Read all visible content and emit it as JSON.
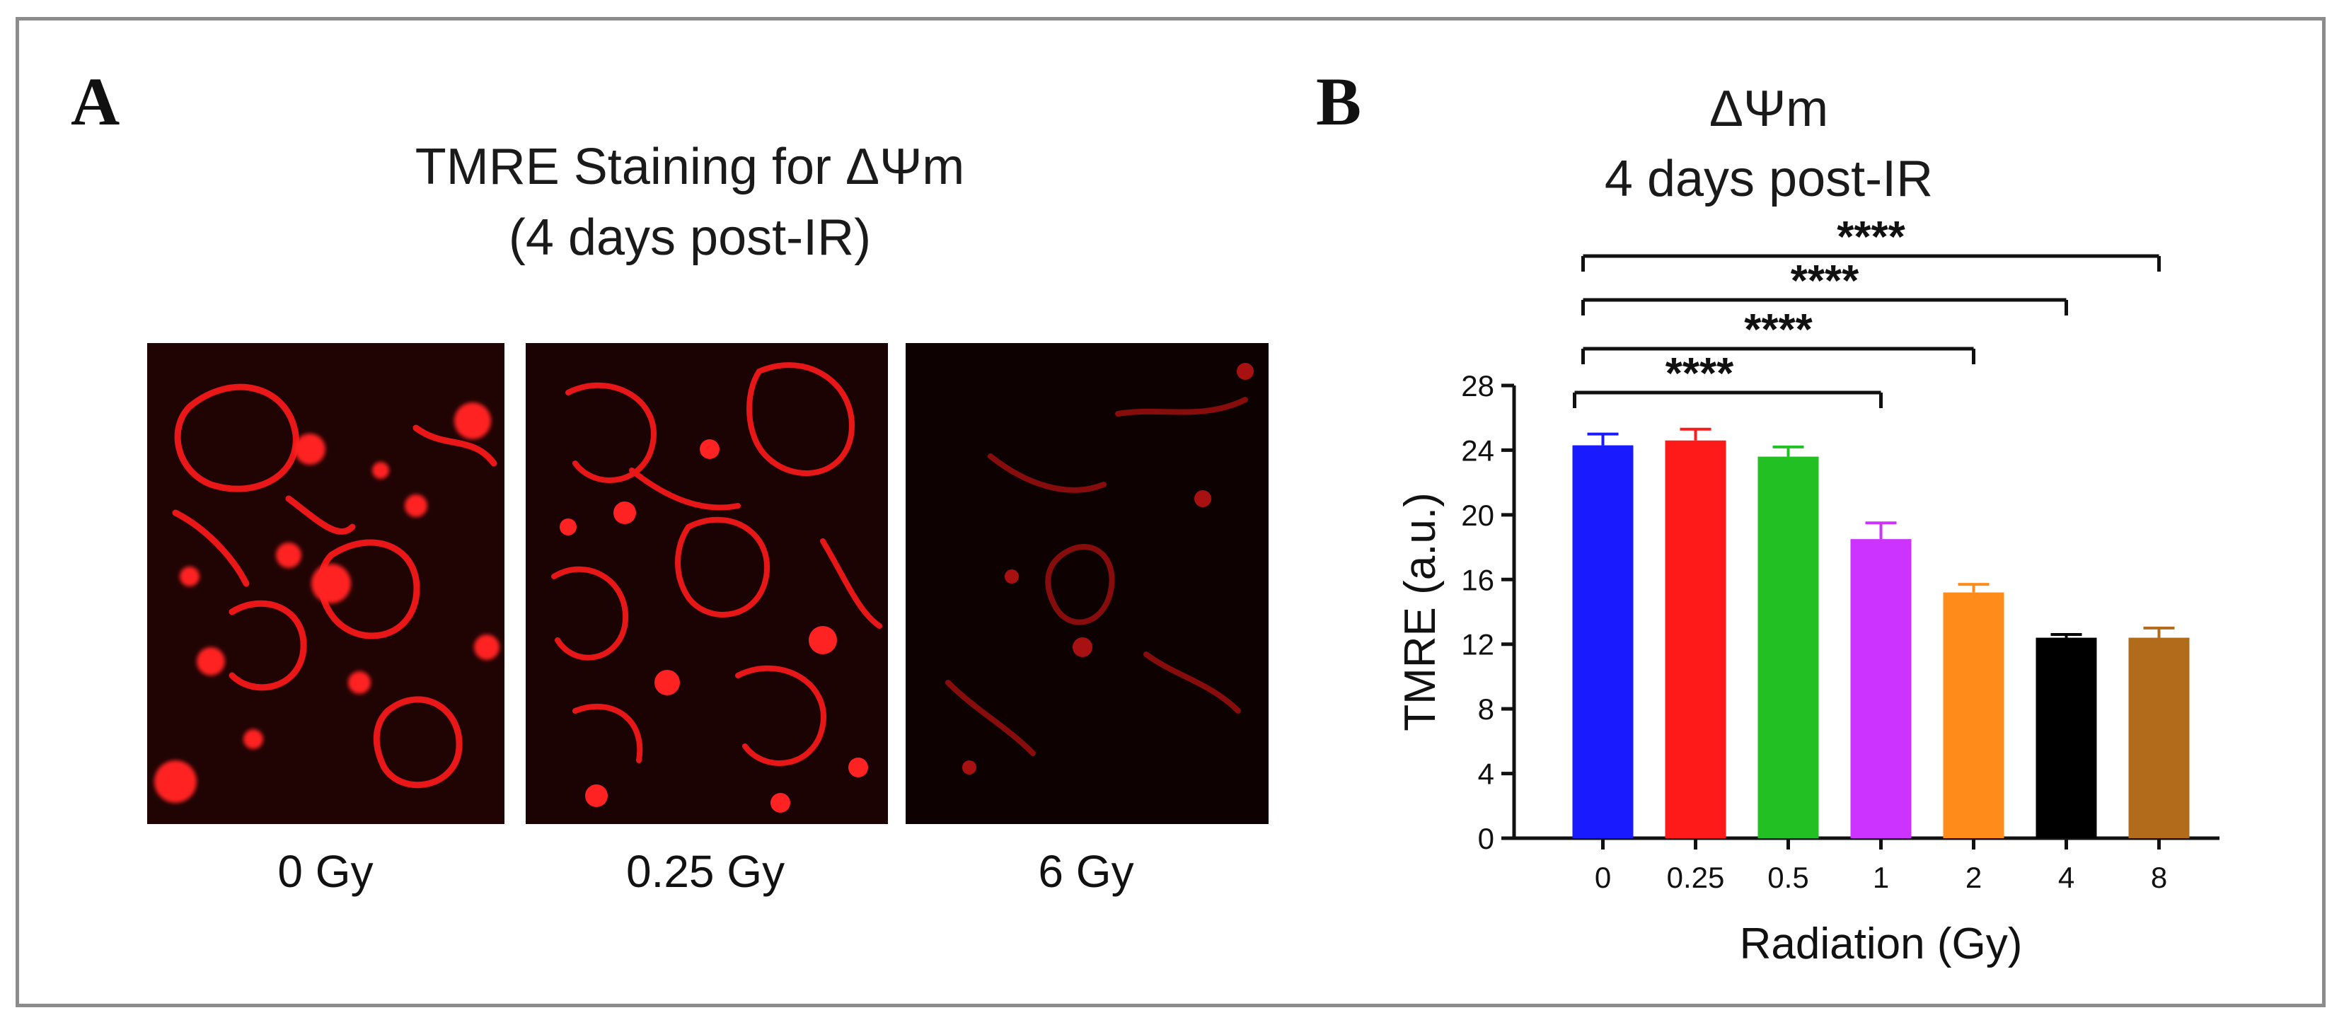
{
  "panel_a": {
    "letter": "A",
    "title_line1": "TMRE Staining for ΔΨm",
    "title_line2": "(4 days post-IR)",
    "images": [
      {
        "label": "0 Gy",
        "intensity": 1.0
      },
      {
        "label": "0.25 Gy",
        "intensity": 0.95
      },
      {
        "label": "6 Gy",
        "intensity": 0.35
      }
    ],
    "stain_color": "#ff1a1a"
  },
  "panel_b": {
    "letter": "B",
    "title_line1": "ΔΨm",
    "title_line2": "4 days post-IR"
  },
  "chart_data": {
    "type": "bar",
    "title": "ΔΨm 4 days post-IR",
    "categories": [
      "0",
      "0.25",
      "0.5",
      "1",
      "2",
      "4",
      "8"
    ],
    "values": [
      24.3,
      24.6,
      23.6,
      18.5,
      15.2,
      12.4,
      12.4
    ],
    "errors": [
      0.7,
      0.7,
      0.6,
      1.0,
      0.5,
      0.2,
      0.6
    ],
    "colors": [
      "#1a1aff",
      "#ff1a1a",
      "#22c022",
      "#cc33ff",
      "#ff8c1a",
      "#000000",
      "#b26b1a"
    ],
    "xlabel": "Radiation (Gy)",
    "ylabel": "TMRE (a.u.)",
    "ylim": [
      0,
      28
    ],
    "yticks": [
      "0",
      "4",
      "8",
      "12",
      "16",
      "20",
      "24",
      "28"
    ],
    "grid": false,
    "significance": [
      {
        "from": "0",
        "to": "1",
        "label": "****"
      },
      {
        "from": "0",
        "to": "2",
        "label": "****"
      },
      {
        "from": "0",
        "to": "4",
        "label": "****"
      },
      {
        "from": "0",
        "to": "8",
        "label": "****"
      }
    ]
  }
}
